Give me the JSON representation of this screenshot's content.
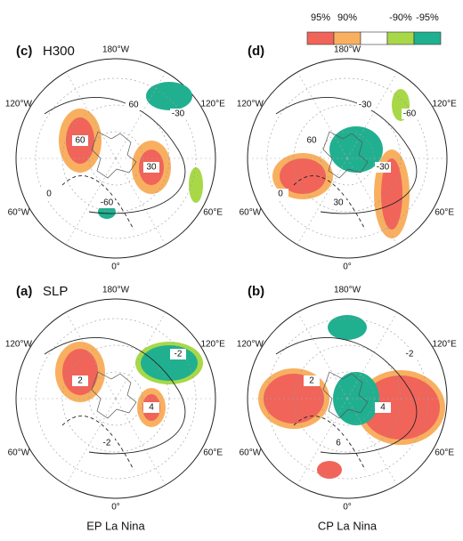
{
  "legend": {
    "labels": [
      "95%",
      "90%",
      "-90%",
      "-95%"
    ]
  },
  "rows": [
    {
      "label": "EP La Nina"
    },
    {
      "label": "CP La Nina"
    }
  ],
  "panels": [
    {
      "label": "(c)",
      "title": "H300",
      "longitudes": [
        "180°W",
        "120°E",
        "60°E",
        "0°",
        "60°W",
        "120°W"
      ],
      "contours": [
        "60",
        "30",
        "-30",
        "-60",
        "0",
        "60"
      ]
    },
    {
      "label": "(d)",
      "title": "",
      "longitudes": [
        "180°W",
        "120°E",
        "60°E",
        "0°",
        "60°W",
        "120°W"
      ],
      "contours": [
        "60",
        "-30",
        "-60",
        "30",
        "0",
        "-30"
      ]
    },
    {
      "label": "(a)",
      "title": "SLP",
      "longitudes": [
        "180°W",
        "120°E",
        "60°E",
        "0°",
        "60°W",
        "120°W"
      ],
      "contours": [
        "2",
        "4",
        "-2",
        "-2"
      ]
    },
    {
      "label": "(b)",
      "title": "",
      "longitudes": [
        "180°W",
        "120°E",
        "60°E",
        "0°",
        "60°W",
        "120°W"
      ],
      "contours": [
        "2",
        "4",
        "-2",
        "6"
      ]
    }
  ]
}
